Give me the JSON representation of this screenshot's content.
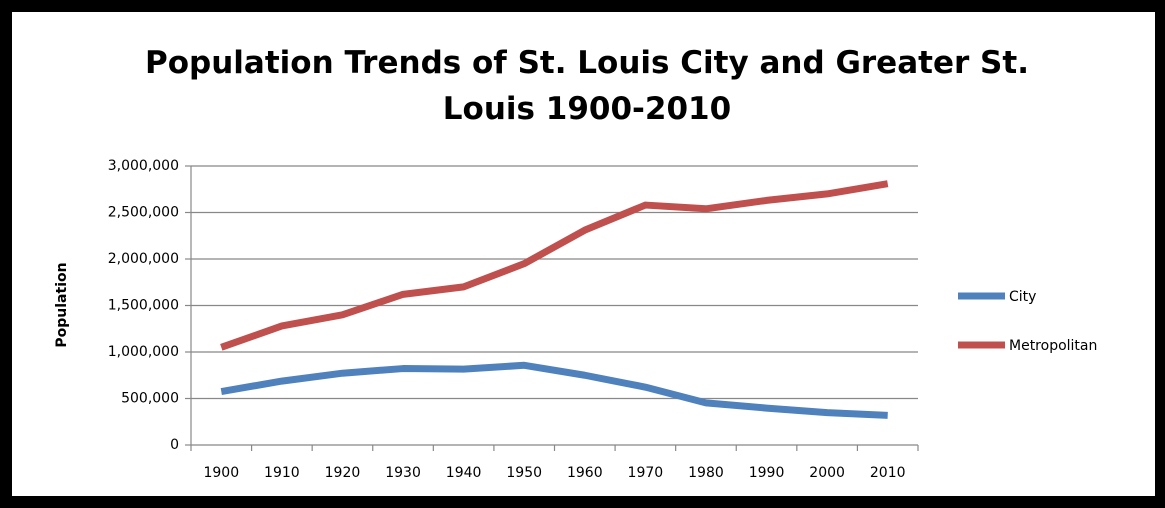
{
  "chart_data": {
    "type": "line",
    "title": "Population Trends of St. Louis City and Greater St. Louis 1900-2010",
    "y_label": "Population",
    "categories": [
      "1900",
      "1910",
      "1920",
      "1930",
      "1940",
      "1950",
      "1960",
      "1970",
      "1980",
      "1990",
      "2000",
      "2010"
    ],
    "series": [
      {
        "name": "City",
        "color": "#4f81bd",
        "values": [
          575000,
          687000,
          772000,
          822000,
          816000,
          857000,
          750000,
          622000,
          453000,
          397000,
          348000,
          319000
        ]
      },
      {
        "name": "Metropolitan",
        "color": "#c0504d",
        "values": [
          1050000,
          1280000,
          1400000,
          1620000,
          1700000,
          1950000,
          2310000,
          2580000,
          2540000,
          2630000,
          2700000,
          2810000
        ]
      }
    ],
    "ylim": [
      0,
      3000000
    ],
    "yticks": [
      0,
      {
        "value": 500000,
        "label": "500,000"
      },
      {
        "value": 1000000,
        "label": "1,000,000"
      },
      {
        "value": 1500000,
        "label": "1,500,000"
      },
      {
        "value": 2000000,
        "label": "2,000,000"
      },
      {
        "value": 2500000,
        "label": "2,500,000"
      },
      {
        "value": 3000000,
        "label": "3,000,000"
      }
    ],
    "grid": true,
    "legend": "right"
  }
}
